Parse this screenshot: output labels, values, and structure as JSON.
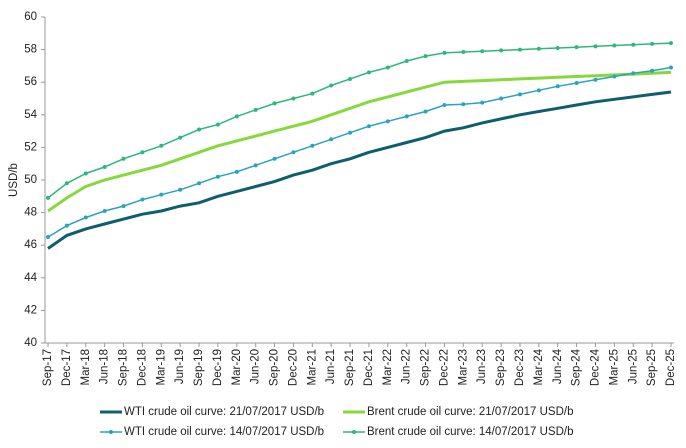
{
  "chart_data": {
    "type": "line",
    "y_label": "USD/b",
    "categories": [
      "Sep-17",
      "Dec-17",
      "Mar-18",
      "Jun-18",
      "Sep-18",
      "Dec-18",
      "Mar-19",
      "Jun-19",
      "Sep-19",
      "Dec-19",
      "Mar-20",
      "Jun-20",
      "Sep-20",
      "Dec-20",
      "Mar-21",
      "Jun-21",
      "Sep-21",
      "Dec-21",
      "Mar-22",
      "Jun-22",
      "Sep-22",
      "Dec-22",
      "Mar-23",
      "Jun-23",
      "Sep-23",
      "Dec-23",
      "Mar-24",
      "Jun-24",
      "Sep-24",
      "Dec-24",
      "Mar-25",
      "Jun-25",
      "Sep-25",
      "Dec-25"
    ],
    "ylim": [
      40,
      60
    ],
    "yticks": [
      40,
      42,
      44,
      46,
      48,
      50,
      52,
      54,
      56,
      58,
      60
    ],
    "series": [
      {
        "name": "WTI crude oil curve: 21/07/2017 USD/b",
        "color": "#0e5f6e",
        "marker": false,
        "values": [
          45.8,
          46.6,
          47.0,
          47.3,
          47.6,
          47.9,
          48.1,
          48.4,
          48.6,
          49.0,
          49.3,
          49.6,
          49.9,
          50.3,
          50.6,
          51.0,
          51.3,
          51.7,
          52.0,
          52.3,
          52.6,
          53.0,
          53.2,
          53.5,
          53.75,
          54.0,
          54.2,
          54.4,
          54.6,
          54.8,
          54.95,
          55.1,
          55.25,
          55.4
        ]
      },
      {
        "name": "Brent crude oil curve: 21/07/2017 USD/b",
        "color": "#86d83c",
        "marker": false,
        "values": [
          48.1,
          48.9,
          49.6,
          50.0,
          50.3,
          50.6,
          50.9,
          51.3,
          51.7,
          52.1,
          52.4,
          52.7,
          53.0,
          53.3,
          53.6,
          54.0,
          54.4,
          54.8,
          55.1,
          55.4,
          55.7,
          56.0,
          56.05,
          56.1,
          56.15,
          56.2,
          56.25,
          56.3,
          56.35,
          56.4,
          56.45,
          56.5,
          56.55,
          56.6
        ]
      },
      {
        "name": "WTI crude oil curve: 14/07/2017 USD/b",
        "color": "#2aa3bd",
        "marker": true,
        "values": [
          46.5,
          47.2,
          47.7,
          48.1,
          48.4,
          48.8,
          49.1,
          49.4,
          49.8,
          50.2,
          50.5,
          50.9,
          51.3,
          51.7,
          52.1,
          52.5,
          52.9,
          53.3,
          53.6,
          53.9,
          54.2,
          54.6,
          54.65,
          54.75,
          55.0,
          55.25,
          55.5,
          55.75,
          55.95,
          56.15,
          56.35,
          56.55,
          56.7,
          56.9
        ]
      },
      {
        "name": "Brent crude oil curve: 14/07/2017 USD/b",
        "color": "#2db87a",
        "marker": true,
        "values": [
          48.9,
          49.8,
          50.4,
          50.8,
          51.3,
          51.7,
          52.1,
          52.6,
          53.1,
          53.4,
          53.9,
          54.3,
          54.7,
          55.0,
          55.3,
          55.8,
          56.2,
          56.6,
          56.9,
          57.3,
          57.6,
          57.8,
          57.85,
          57.9,
          57.95,
          58.0,
          58.05,
          58.1,
          58.15,
          58.2,
          58.25,
          58.3,
          58.35,
          58.4
        ]
      }
    ]
  }
}
